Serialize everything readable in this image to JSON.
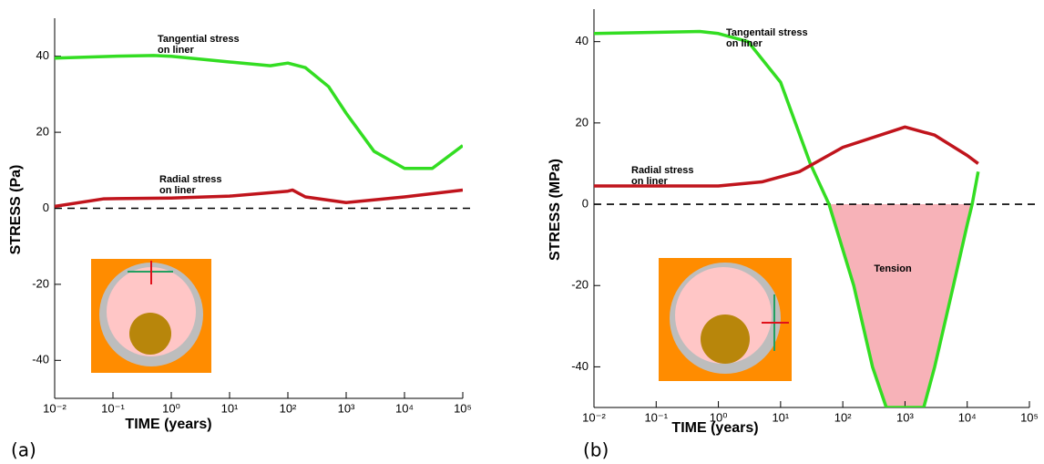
{
  "chart_data": [
    {
      "type": "line",
      "panel_label": "(a)",
      "ylabel": "STRESS (Pa)",
      "xlabel": "TIME (years)",
      "xscale": "log",
      "xlim": [
        0.01,
        100000
      ],
      "ylim": [
        -50,
        50
      ],
      "xticks": [
        {
          "value": 0.01,
          "label": "10⁻²"
        },
        {
          "value": 0.1,
          "label": "10⁻¹"
        },
        {
          "value": 1,
          "label": "10⁰"
        },
        {
          "value": 10,
          "label": "10¹"
        },
        {
          "value": 100,
          "label": "10²"
        },
        {
          "value": 1000,
          "label": "10³"
        },
        {
          "value": 10000,
          "label": "10⁴"
        },
        {
          "value": 100000,
          "label": "10⁵"
        }
      ],
      "yticks": [
        40,
        20,
        0,
        -20,
        -40
      ],
      "hline": 0,
      "annotations": [
        "Tangential stress",
        "on liner",
        "Radial stress",
        "on liner"
      ],
      "series": [
        {
          "color": "#33dd22",
          "x": [
            0.01,
            0.1,
            0.5,
            1,
            10,
            50,
            100,
            200,
            500,
            1000,
            3000,
            10000,
            30000,
            100000
          ],
          "values": [
            39.5,
            40,
            40.2,
            40,
            38.5,
            37.5,
            38.2,
            37,
            32,
            25,
            15,
            10.5,
            10.5,
            16.5
          ]
        },
        {
          "color": "#c0141c",
          "x": [
            0.01,
            0.07,
            1,
            10,
            100,
            120,
            200,
            1000,
            10000,
            100000
          ],
          "values": [
            0.5,
            2.5,
            2.7,
            3.2,
            4.5,
            4.8,
            3,
            1.5,
            3,
            4.8
          ]
        }
      ]
    },
    {
      "type": "line",
      "panel_label": "(b)",
      "ylabel": "STRESS (MPa)",
      "xlabel": "TIME (years)",
      "xscale": "log",
      "xlim": [
        0.01,
        100000
      ],
      "ylim": [
        -50,
        48
      ],
      "xticks": [
        {
          "value": 0.01,
          "label": "10⁻²"
        },
        {
          "value": 0.1,
          "label": "10⁻¹"
        },
        {
          "value": 1,
          "label": "10⁰"
        },
        {
          "value": 10,
          "label": "10¹"
        },
        {
          "value": 100,
          "label": "10²"
        },
        {
          "value": 1000,
          "label": "10³"
        },
        {
          "value": 10000,
          "label": "10⁴"
        },
        {
          "value": 100000,
          "label": "10⁵"
        }
      ],
      "yticks": [
        40,
        20,
        0,
        -20,
        -40
      ],
      "hline": 0,
      "annotations": [
        "Tangentail stress",
        "on liner",
        "Radial stress",
        "on liner",
        "Tension"
      ],
      "series": [
        {
          "color": "#33dd22",
          "x": [
            0.01,
            0.5,
            1,
            3,
            10,
            30,
            60,
            150,
            300,
            500,
            2000,
            3000,
            6000,
            10000,
            12000,
            15000
          ],
          "values": [
            42,
            42.5,
            42,
            40,
            30,
            10,
            0,
            -20,
            -40,
            -50,
            -50,
            -40,
            -20,
            -5,
            0,
            8
          ]
        },
        {
          "color": "#c0141c",
          "x": [
            0.01,
            1,
            5,
            20,
            100,
            1000,
            3000,
            10000,
            15000
          ],
          "values": [
            4.5,
            4.5,
            5.5,
            8,
            14,
            19,
            17,
            12,
            10
          ]
        }
      ]
    }
  ]
}
